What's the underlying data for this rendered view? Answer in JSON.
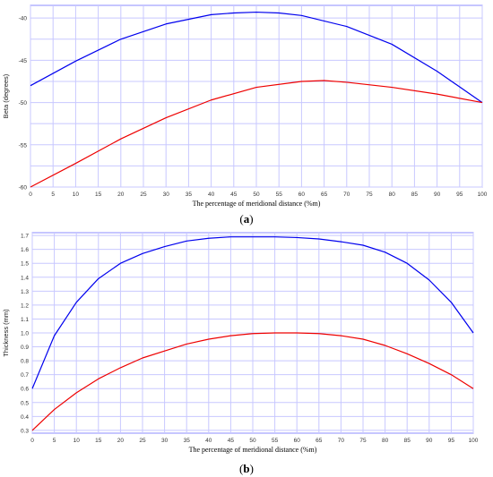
{
  "chart_data": [
    {
      "type": "line",
      "xlabel": "The percentage of meridional distance (%m)",
      "ylabel": "Beta (degrees)",
      "xlim": [
        0,
        100
      ],
      "ylim": [
        -60,
        -38.5
      ],
      "grid": true,
      "x_ticks": [
        0,
        5,
        10,
        15,
        20,
        25,
        30,
        35,
        40,
        45,
        50,
        55,
        60,
        65,
        70,
        75,
        80,
        85,
        90,
        95,
        100
      ],
      "y_ticks": [
        -60,
        -55,
        -50,
        -45,
        -40
      ],
      "y_grid": [
        -60,
        -57.5,
        -55,
        -52.5,
        -50,
        -47.5,
        -45,
        -42.5,
        -40
      ],
      "series": [
        {
          "color": "#0000ee",
          "x": [
            0,
            10,
            20,
            30,
            40,
            45,
            50,
            55,
            60,
            70,
            80,
            90,
            100
          ],
          "y": [
            -48,
            -45.1,
            -42.5,
            -40.7,
            -39.6,
            -39.4,
            -39.3,
            -39.4,
            -39.7,
            -41.0,
            -43.1,
            -46.3,
            -50
          ]
        },
        {
          "color": "#ee0000",
          "x": [
            0,
            10,
            20,
            30,
            40,
            50,
            60,
            65,
            70,
            80,
            90,
            100
          ],
          "y": [
            -60,
            -57.2,
            -54.3,
            -51.8,
            -49.7,
            -48.2,
            -47.5,
            -47.4,
            -47.6,
            -48.2,
            -49.0,
            -50
          ]
        }
      ]
    },
    {
      "type": "line",
      "xlabel": "The percentage of meridional distance (%m)",
      "ylabel": "Thickness (mm)",
      "xlim": [
        0,
        100
      ],
      "ylim": [
        0.28,
        1.72
      ],
      "grid": true,
      "x_ticks": [
        0,
        5,
        10,
        15,
        20,
        25,
        30,
        35,
        40,
        45,
        50,
        55,
        60,
        65,
        70,
        75,
        80,
        85,
        90,
        95,
        100
      ],
      "y_ticks": [
        0.3,
        0.4,
        0.5,
        0.6,
        0.7,
        0.8,
        0.9,
        1.0,
        1.1,
        1.2,
        1.3,
        1.4,
        1.5,
        1.6,
        1.7
      ],
      "y_tick_labels": [
        "0.3",
        "0.4",
        "0.5",
        "0.6",
        "0.7",
        "0.8",
        "0.9",
        "1.0",
        "1.1",
        "1.2",
        "1.3",
        "1.4",
        "1.5",
        "1.6",
        "1.7"
      ],
      "series": [
        {
          "color": "#0000ee",
          "x": [
            0,
            5,
            10,
            15,
            20,
            25,
            30,
            35,
            40,
            45,
            50,
            55,
            60,
            65,
            70,
            75,
            80,
            85,
            90,
            95,
            100
          ],
          "y": [
            0.6,
            0.98,
            1.22,
            1.39,
            1.5,
            1.57,
            1.62,
            1.66,
            1.68,
            1.69,
            1.69,
            1.69,
            1.685,
            1.675,
            1.655,
            1.63,
            1.58,
            1.5,
            1.38,
            1.22,
            1.0
          ]
        },
        {
          "color": "#ee0000",
          "x": [
            0,
            5,
            10,
            15,
            20,
            25,
            30,
            35,
            40,
            45,
            50,
            55,
            60,
            65,
            70,
            75,
            80,
            85,
            90,
            95,
            100
          ],
          "y": [
            0.3,
            0.45,
            0.57,
            0.67,
            0.75,
            0.82,
            0.87,
            0.92,
            0.955,
            0.98,
            0.995,
            1.0,
            1.0,
            0.995,
            0.98,
            0.955,
            0.91,
            0.85,
            0.78,
            0.7,
            0.6
          ]
        }
      ]
    }
  ],
  "captions": [
    {
      "open": "(",
      "letter": "a",
      "close": ")"
    },
    {
      "open": "(",
      "letter": "b",
      "close": ")"
    }
  ]
}
